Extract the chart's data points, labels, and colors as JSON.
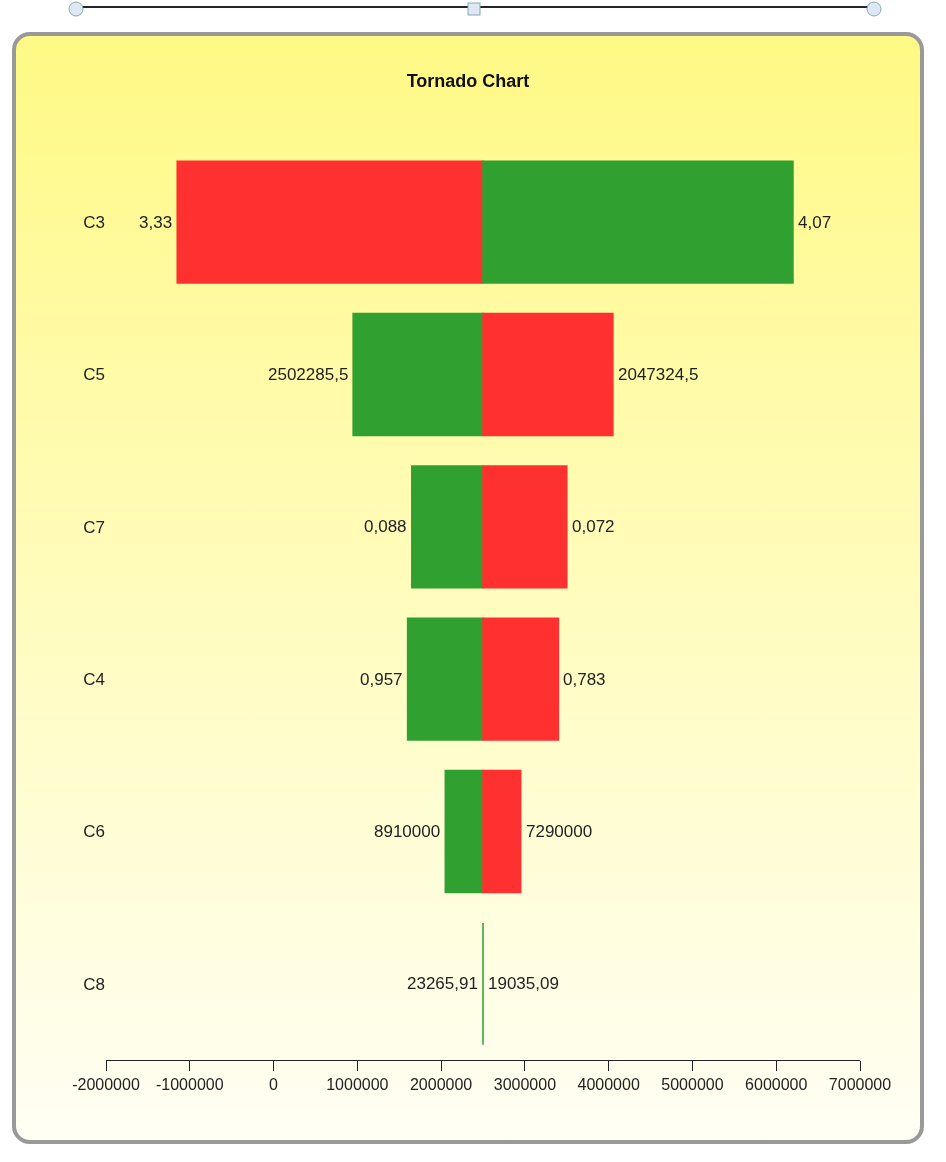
{
  "chart_data": {
    "type": "bar",
    "title": "Tornado Chart",
    "orientation": "horizontal",
    "categories": [
      "C3",
      "C5",
      "C7",
      "C4",
      "C6",
      "C8"
    ],
    "series": [
      {
        "colors": [
          "#ff3030",
          "#30a030",
          "#30a030",
          "#30a030",
          "#30a030",
          "#30a030"
        ],
        "base": [
          2500000,
          2500000,
          2500000,
          2500000,
          2500000,
          2500000
        ],
        "values": [
          -3650000,
          -1550000,
          -850000,
          -900000,
          -450000,
          0
        ]
      },
      {
        "colors": [
          "#30a030",
          "#ff3030",
          "#ff3030",
          "#ff3030",
          "#ff3030",
          "#ff3030"
        ],
        "base": [
          2500000,
          2500000,
          2500000,
          2500000,
          2500000,
          null
        ],
        "values": [
          3700000,
          1550000,
          1000000,
          900000,
          450000,
          null
        ]
      }
    ],
    "annotations": [
      {
        "text": "3,33",
        "x": -1150000,
        "y": "C3"
      },
      {
        "text": "4,07",
        "x": 6200000,
        "y": "C3"
      },
      {
        "text": "2502285,5",
        "x": 950000,
        "y": "C5"
      },
      {
        "text": "2047324,5",
        "x": 4050000,
        "y": "C5"
      },
      {
        "text": "0,088",
        "x": 1650000,
        "y": "C7"
      },
      {
        "text": "0,072",
        "x": 3500000,
        "y": "C7"
      },
      {
        "text": "0,957",
        "x": 1600000,
        "y": "C4"
      },
      {
        "text": "0,783",
        "x": 3400000,
        "y": "C4"
      },
      {
        "text": "8910000",
        "x": 2050000,
        "y": "C6"
      },
      {
        "text": "7290000",
        "x": 2950000,
        "y": "C6"
      },
      {
        "text": "23265,91",
        "x": 2500000,
        "y": "C8"
      },
      {
        "text": "19035,09",
        "x": 2500000,
        "y": "C8"
      }
    ],
    "xlim": [
      -2000000,
      7000000
    ],
    "xticks": [
      -2000000,
      -1000000,
      0,
      1000000,
      2000000,
      3000000,
      4000000,
      5000000,
      6000000,
      7000000
    ],
    "grid": false,
    "tick_labels": "x"
  }
}
